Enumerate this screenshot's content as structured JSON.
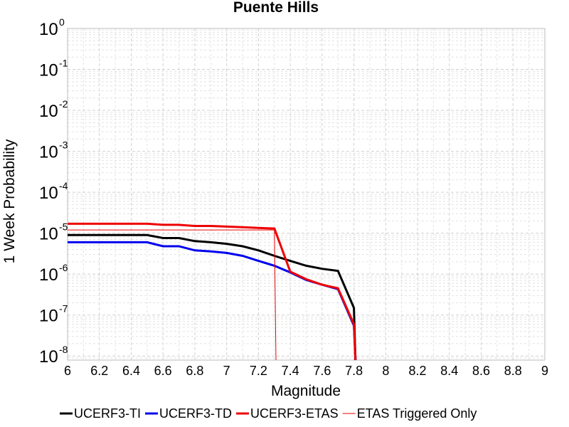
{
  "chart_data": {
    "type": "line",
    "title": "Puente Hills",
    "xlabel": "Magnitude",
    "ylabel": "1 Week Probability",
    "xlim": [
      6,
      9
    ],
    "ylim_log10": [
      -8.1,
      0
    ],
    "y_scale": "log",
    "grid": true,
    "x_ticks": [
      "6",
      "6.2",
      "6.4",
      "6.6",
      "6.8",
      "7",
      "7.2",
      "7.4",
      "7.6",
      "7.8",
      "8",
      "8.2",
      "8.4",
      "8.6",
      "8.8",
      "9"
    ],
    "y_ticks": [
      {
        "base": "10",
        "exp": "0",
        "log10": 0
      },
      {
        "base": "10",
        "exp": "-1",
        "log10": -1
      },
      {
        "base": "10",
        "exp": "-2",
        "log10": -2
      },
      {
        "base": "10",
        "exp": "-3",
        "log10": -3
      },
      {
        "base": "10",
        "exp": "-4",
        "log10": -4
      },
      {
        "base": "10",
        "exp": "-5",
        "log10": -5
      },
      {
        "base": "10",
        "exp": "-6",
        "log10": -6
      },
      {
        "base": "10",
        "exp": "-7",
        "log10": -7
      },
      {
        "base": "10",
        "exp": "-8",
        "log10": -8
      }
    ],
    "legend_position": "bottom",
    "series": [
      {
        "name": "UCERF3-TI",
        "color": "#000000",
        "width": 3,
        "x": [
          6.0,
          6.1,
          6.2,
          6.3,
          6.4,
          6.5,
          6.6,
          6.7,
          6.8,
          6.9,
          7.0,
          7.1,
          7.2,
          7.3,
          7.4,
          7.5,
          7.6,
          7.7,
          7.8,
          7.81
        ],
        "y": [
          9e-06,
          9e-06,
          9e-06,
          9e-06,
          9e-06,
          9e-06,
          7.6e-06,
          7.6e-06,
          6.4e-06,
          6e-06,
          5.5e-06,
          4.8e-06,
          3.8e-06,
          2.8e-06,
          2.1e-06,
          1.6e-06,
          1.35e-06,
          1.2e-06,
          1.5e-07,
          1e-09
        ]
      },
      {
        "name": "UCERF3-TD",
        "color": "#0000ee",
        "width": 3,
        "x": [
          6.0,
          6.1,
          6.2,
          6.3,
          6.4,
          6.5,
          6.6,
          6.7,
          6.8,
          6.9,
          7.0,
          7.1,
          7.2,
          7.3,
          7.4,
          7.5,
          7.6,
          7.7,
          7.8,
          7.81
        ],
        "y": [
          6e-06,
          6e-06,
          6e-06,
          6e-06,
          6e-06,
          6e-06,
          4.8e-06,
          4.8e-06,
          3.8e-06,
          3.6e-06,
          3.3e-06,
          2.8e-06,
          2.1e-06,
          1.6e-06,
          1.1e-06,
          7.2e-07,
          5.5e-07,
          4.3e-07,
          5.5e-08,
          1e-09
        ]
      },
      {
        "name": "UCERF3-ETAS",
        "color": "#ee0000",
        "width": 3,
        "x": [
          6.0,
          6.1,
          6.2,
          6.3,
          6.4,
          6.5,
          6.6,
          6.7,
          6.8,
          6.9,
          7.0,
          7.1,
          7.2,
          7.3,
          7.4,
          7.5,
          7.6,
          7.7,
          7.8,
          7.81
        ],
        "y": [
          1.7e-05,
          1.7e-05,
          1.7e-05,
          1.7e-05,
          1.7e-05,
          1.7e-05,
          1.6e-05,
          1.6e-05,
          1.5e-05,
          1.5e-05,
          1.45e-05,
          1.4e-05,
          1.35e-05,
          1.3e-05,
          1.15e-06,
          7.5e-07,
          5.5e-07,
          4.5e-07,
          6e-08,
          1e-09
        ]
      },
      {
        "name": "ETAS Triggered Only",
        "color": "#ee0000",
        "width": 1,
        "x": [
          6.0,
          6.1,
          6.2,
          6.3,
          6.4,
          6.5,
          6.6,
          6.7,
          6.8,
          6.9,
          7.0,
          7.1,
          7.2,
          7.3,
          7.31
        ],
        "y": [
          1.2e-05,
          1.2e-05,
          1.2e-05,
          1.2e-05,
          1.2e-05,
          1.2e-05,
          1.2e-05,
          1.2e-05,
          1.2e-05,
          1.2e-05,
          1.2e-05,
          1.2e-05,
          1.2e-05,
          1.2e-05,
          1e-09
        ]
      }
    ]
  }
}
